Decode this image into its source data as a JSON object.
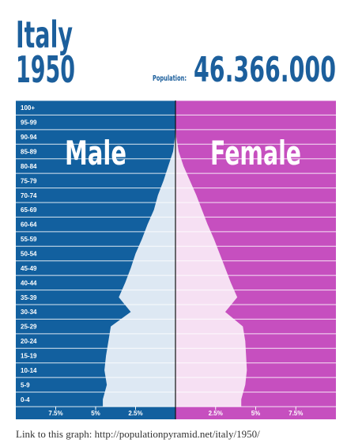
{
  "chart_data": {
    "type": "pyramid",
    "country": "Italy",
    "year": "1950",
    "population_label": "Population:",
    "population": "46.366.000",
    "categories": [
      "0-4",
      "5-9",
      "10-14",
      "15-19",
      "20-24",
      "25-29",
      "30-34",
      "35-39",
      "40-44",
      "45-49",
      "50-54",
      "55-59",
      "60-64",
      "65-69",
      "70-74",
      "75-79",
      "80-84",
      "85-89",
      "90-94",
      "95-99",
      "100+"
    ],
    "series": [
      {
        "name": "Male",
        "color": "#12609f",
        "fill": "#dde8f3",
        "values": [
          4.55,
          4.3,
          4.45,
          4.35,
          4.2,
          4.05,
          2.8,
          3.55,
          3.15,
          2.8,
          2.5,
          2.1,
          1.75,
          1.35,
          1.1,
          0.75,
          0.45,
          0.15,
          0.03,
          0.01,
          0
        ]
      },
      {
        "name": "Female",
        "color": "#c64fbf",
        "fill": "#f6e0f3",
        "values": [
          4.1,
          4.35,
          4.45,
          4.4,
          4.35,
          4.2,
          3.1,
          3.85,
          3.45,
          3.1,
          2.75,
          2.4,
          2.0,
          1.65,
          1.3,
          0.9,
          0.5,
          0.2,
          0.05,
          0.01,
          0
        ]
      }
    ],
    "xlim": [
      0,
      10
    ],
    "xticks": [
      {
        "value": 2.5,
        "label": "2.5%"
      },
      {
        "value": 5,
        "label": "5%"
      },
      {
        "value": 7.5,
        "label": "7.5%"
      }
    ],
    "footer": "Link to this graph: http://populationpyramid.net/italy/1950/"
  }
}
